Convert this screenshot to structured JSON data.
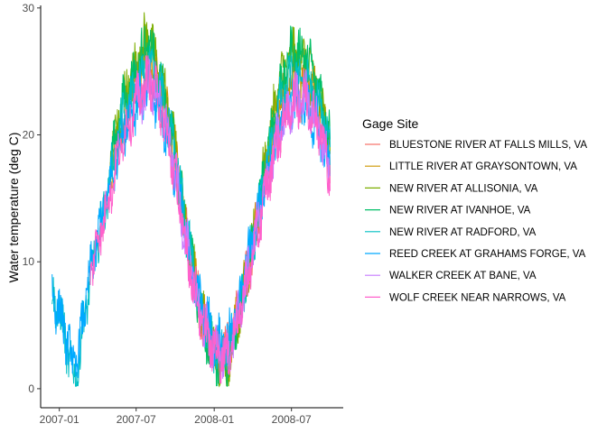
{
  "chart_data": {
    "type": "line",
    "title": "",
    "xlabel": "",
    "ylabel": "Water temperature (deg C)",
    "xlim": [
      "2006-11-18",
      "2008-10-31"
    ],
    "ylim": [
      -1.5,
      30.2
    ],
    "x_ticks": [
      "2007-01",
      "2007-07",
      "2008-01",
      "2008-07"
    ],
    "x_tick_labels": [
      "2007-01",
      "2007-07",
      "2008-01",
      "2008-07"
    ],
    "y_ticks": [
      0,
      10,
      20,
      30
    ],
    "y_tick_labels": [
      "0",
      "10",
      "20",
      "30"
    ],
    "grid": false,
    "legend": {
      "title": "Gage Site",
      "position": "right"
    },
    "series": [
      {
        "name": "BLUESTONE RIVER AT FALLS MILLS, VA",
        "color": "#F8766D",
        "x": [
          "2007-07-01",
          "2007-07-15",
          "2007-08-01",
          "2007-08-15",
          "2007-09-01",
          "2007-10-01",
          "2007-11-01",
          "2007-12-01",
          "2008-01-01",
          "2008-02-01",
          "2008-03-01",
          "2008-04-01",
          "2008-05-01",
          "2008-06-01",
          "2008-07-01",
          "2008-08-01",
          "2008-09-01",
          "2008-09-30"
        ],
        "y": [
          22.5,
          23.5,
          24.5,
          24.0,
          22.5,
          17.5,
          11.0,
          6.0,
          3.5,
          3.0,
          6.5,
          11.5,
          16.5,
          20.5,
          23.0,
          23.5,
          21.5,
          18.0
        ]
      },
      {
        "name": "LITTLE RIVER AT GRAYSONTOWN, VA",
        "color": "#CD9600",
        "x": [
          "2007-05-01",
          "2007-06-01",
          "2007-07-01",
          "2007-07-15",
          "2007-08-01",
          "2007-08-15",
          "2007-09-01",
          "2007-10-01",
          "2007-11-01",
          "2007-12-01",
          "2008-01-01",
          "2008-02-01",
          "2008-03-01",
          "2008-04-01",
          "2008-05-01",
          "2008-06-01",
          "2008-07-01",
          "2008-08-01",
          "2008-09-01",
          "2008-09-30"
        ],
        "y": [
          17.0,
          21.5,
          24.5,
          25.5,
          26.5,
          25.5,
          23.5,
          18.5,
          11.5,
          6.0,
          3.0,
          2.5,
          6.5,
          11.5,
          17.0,
          22.5,
          25.0,
          24.5,
          23.0,
          19.0
        ]
      },
      {
        "name": "NEW RIVER AT ALLISONIA, VA",
        "color": "#7CAE00",
        "x": [
          "2007-05-01",
          "2007-06-01",
          "2007-07-01",
          "2007-07-15",
          "2007-08-01",
          "2007-08-15",
          "2007-09-01",
          "2007-10-01",
          "2007-11-01",
          "2007-12-01",
          "2008-01-01",
          "2008-02-01",
          "2008-03-01",
          "2008-04-01",
          "2008-05-01",
          "2008-06-01",
          "2008-07-01",
          "2008-08-01",
          "2008-09-01",
          "2008-09-30"
        ],
        "y": [
          18.0,
          23.0,
          25.5,
          27.0,
          28.0,
          26.0,
          24.0,
          19.0,
          12.0,
          6.0,
          2.5,
          2.0,
          6.0,
          11.5,
          18.0,
          24.0,
          26.5,
          26.0,
          24.0,
          19.5
        ]
      },
      {
        "name": "NEW RIVER AT IVANHOE, VA",
        "color": "#00BE67",
        "x": [
          "2007-05-01",
          "2007-06-01",
          "2007-07-01",
          "2007-07-15",
          "2007-08-01",
          "2007-08-15",
          "2007-09-01",
          "2007-10-01",
          "2007-11-01",
          "2007-12-01",
          "2008-01-01",
          "2008-02-01",
          "2008-03-01",
          "2008-04-01",
          "2008-05-01",
          "2008-06-01",
          "2008-07-01",
          "2008-08-01",
          "2008-09-01",
          "2008-09-30"
        ],
        "y": [
          17.5,
          22.5,
          25.0,
          26.5,
          27.0,
          25.5,
          23.5,
          18.5,
          11.5,
          5.5,
          2.5,
          2.0,
          6.0,
          11.5,
          17.5,
          23.5,
          26.5,
          26.5,
          24.0,
          20.0
        ]
      },
      {
        "name": "NEW RIVER AT RADFORD, VA",
        "color": "#00BFC4",
        "x": [
          "2006-12-15",
          "2007-01-01",
          "2007-01-15",
          "2007-02-01",
          "2007-02-15",
          "2007-03-01",
          "2007-04-01",
          "2007-05-01",
          "2007-06-01",
          "2007-07-01",
          "2007-07-15",
          "2007-08-01",
          "2007-08-15",
          "2007-09-01",
          "2007-10-01",
          "2007-11-01",
          "2007-12-01",
          "2008-01-01",
          "2008-02-01",
          "2008-03-01",
          "2008-04-01",
          "2008-05-01",
          "2008-06-01",
          "2008-07-01",
          "2008-08-01",
          "2008-09-01",
          "2008-09-30"
        ],
        "y": [
          7.0,
          6.0,
          4.0,
          1.0,
          1.5,
          6.0,
          11.5,
          16.5,
          21.5,
          23.5,
          24.5,
          25.5,
          24.5,
          23.0,
          18.5,
          11.5,
          6.0,
          3.0,
          2.5,
          6.5,
          11.5,
          17.0,
          22.0,
          24.5,
          24.5,
          22.5,
          19.5
        ]
      },
      {
        "name": "REED CREEK AT GRAHAMS FORGE, VA",
        "color": "#00A9FF",
        "x": [
          "2006-12-15",
          "2007-01-01",
          "2007-01-15",
          "2007-02-01",
          "2007-02-15",
          "2007-03-01",
          "2007-04-01",
          "2007-05-01",
          "2007-06-01",
          "2007-07-01",
          "2007-08-01",
          "2007-09-01",
          "2007-10-01",
          "2007-11-01",
          "2007-12-01",
          "2008-01-01",
          "2008-02-01",
          "2008-03-01",
          "2008-04-01",
          "2008-05-01",
          "2008-06-01",
          "2008-07-01",
          "2008-08-01",
          "2008-09-01",
          "2008-09-30"
        ],
        "y": [
          7.5,
          6.0,
          4.5,
          2.0,
          2.5,
          6.5,
          12.0,
          16.0,
          20.5,
          22.5,
          23.5,
          21.5,
          17.0,
          11.0,
          6.5,
          4.0,
          3.5,
          7.0,
          12.0,
          16.5,
          20.5,
          22.5,
          22.5,
          20.5,
          17.5
        ]
      },
      {
        "name": "WALKER CREEK AT BANE, VA",
        "color": "#C77CFF",
        "x": [
          "2007-07-01",
          "2007-07-15",
          "2007-08-01",
          "2007-08-15",
          "2007-09-01",
          "2007-10-01",
          "2007-11-01",
          "2007-12-01",
          "2008-01-01",
          "2008-02-01",
          "2008-03-01",
          "2008-04-01",
          "2008-05-01",
          "2008-06-01",
          "2008-07-01",
          "2008-08-01",
          "2008-09-01",
          "2008-09-30"
        ],
        "y": [
          22.0,
          23.0,
          24.0,
          23.5,
          22.0,
          17.0,
          10.5,
          5.5,
          3.0,
          2.5,
          6.0,
          11.0,
          16.0,
          20.0,
          22.5,
          23.0,
          21.0,
          17.0
        ]
      },
      {
        "name": "WOLF CREEK NEAR NARROWS, VA",
        "color": "#FF61CC",
        "x": [
          "2007-03-15",
          "2007-04-01",
          "2007-05-01",
          "2007-06-01",
          "2007-07-01",
          "2007-07-15",
          "2007-08-01",
          "2007-08-15",
          "2007-09-01",
          "2007-10-01",
          "2007-11-01",
          "2007-12-01",
          "2008-01-01",
          "2008-02-01",
          "2008-03-01",
          "2008-04-01",
          "2008-05-01",
          "2008-06-01",
          "2008-07-01",
          "2008-08-01",
          "2008-09-01",
          "2008-09-30"
        ],
        "y": [
          9.5,
          11.5,
          15.5,
          20.0,
          22.5,
          23.5,
          24.5,
          23.5,
          21.5,
          16.5,
          10.0,
          5.5,
          3.0,
          2.5,
          6.0,
          10.5,
          15.5,
          20.0,
          22.5,
          23.0,
          21.0,
          17.0
        ]
      }
    ]
  }
}
